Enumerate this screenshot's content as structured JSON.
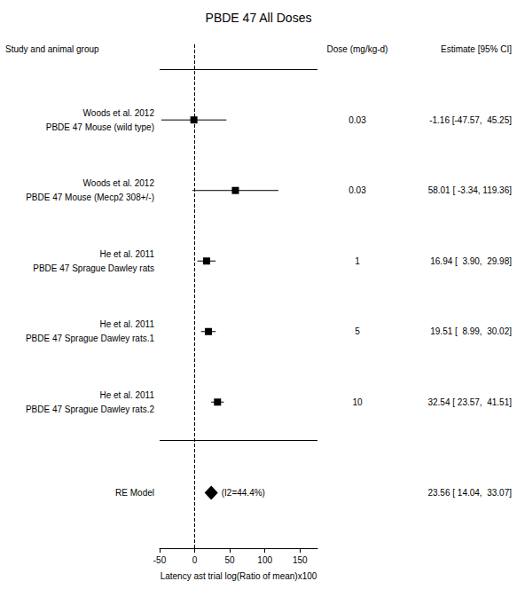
{
  "chart_data": {
    "type": "forest",
    "title": "PBDE 47 All Doses",
    "column_headers": {
      "study": "Study and animal group",
      "dose": "Dose (mg/kg-d)",
      "estimate": "Estimate [95% CI]"
    },
    "xlabel": "Latency ast trial log(Ratio of mean)x100",
    "xlim": [
      -50,
      175
    ],
    "xticks": [
      -50,
      0,
      50,
      100,
      150
    ],
    "grid": false,
    "reference_line": {
      "x": 0,
      "line_style": "dashed"
    },
    "color": "#000000",
    "marker": "square",
    "studies": [
      {
        "label1": "Woods et al. 2012",
        "label2": "PBDE 47 Mouse (wild type)",
        "dose": "0.03",
        "estimate": -1.16,
        "ci_low": -47.57,
        "ci_high": 45.25,
        "estimate_text": "-1.16 [-47.57,  45.25]"
      },
      {
        "label1": "Woods et al. 2012",
        "label2": "PBDE 47 Mouse (Mecp2 308+/-)",
        "dose": "0.03",
        "estimate": 58.01,
        "ci_low": -3.34,
        "ci_high": 119.36,
        "estimate_text": "58.01 [ -3.34, 119.36]"
      },
      {
        "label1": "He et al. 2011",
        "label2": "PBDE 47 Sprague Dawley rats",
        "dose": "1",
        "estimate": 16.94,
        "ci_low": 3.9,
        "ci_high": 29.98,
        "estimate_text": "16.94 [  3.90,  29.98]"
      },
      {
        "label1": "He et al. 2011",
        "label2": "PBDE 47 Sprague Dawley rats.1",
        "dose": "5",
        "estimate": 19.51,
        "ci_low": 8.99,
        "ci_high": 30.02,
        "estimate_text": "19.51 [  8.99,  30.02]"
      },
      {
        "label1": "He et al. 2011",
        "label2": "PBDE 47 Sprague Dawley rats.2",
        "dose": "10",
        "estimate": 32.54,
        "ci_low": 23.57,
        "ci_high": 41.51,
        "estimate_text": "32.54 [ 23.57,  41.51]"
      }
    ],
    "summary": {
      "label": "RE Model",
      "marker": "diamond",
      "estimate": 23.56,
      "ci_low": 14.04,
      "ci_high": 33.07,
      "heterogeneity_text": "(I2=44.4%)",
      "estimate_text": "23.56 [ 14.04,  33.07]"
    }
  }
}
